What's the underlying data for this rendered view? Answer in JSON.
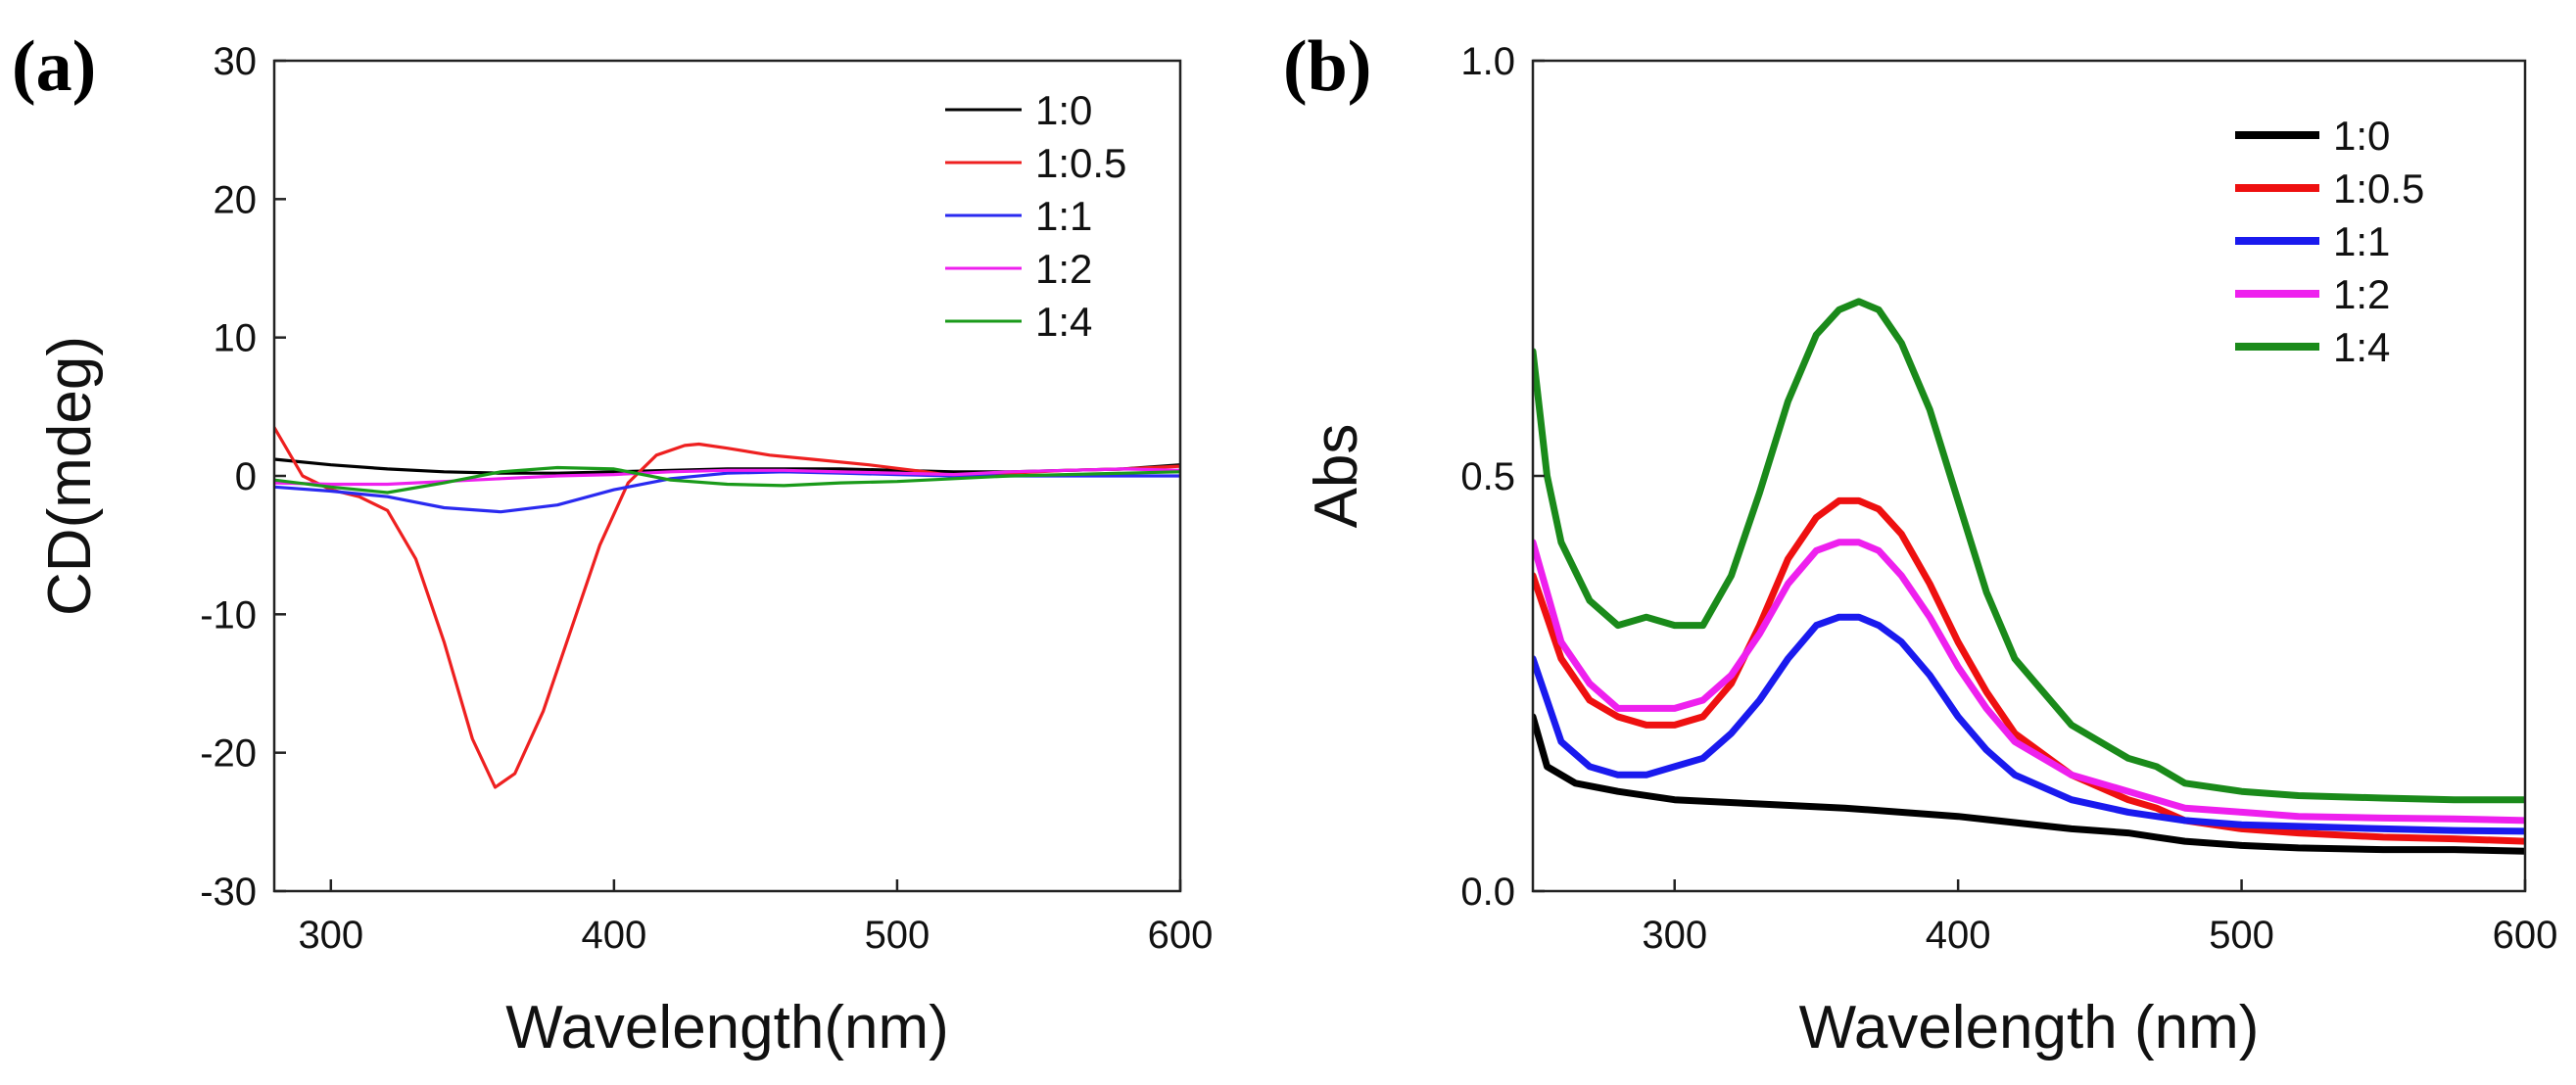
{
  "panels": {
    "a": {
      "label": "(a)"
    },
    "b": {
      "label": "(b)"
    }
  },
  "chart_data": [
    {
      "type": "line",
      "title": "",
      "xlabel": "Wavelength(nm)",
      "ylabel": "CD(mdeg)",
      "xlim": [
        280,
        600
      ],
      "ylim": [
        -30,
        30
      ],
      "xticks": [
        300,
        400,
        500,
        600
      ],
      "yticks": [
        -30,
        -20,
        -10,
        0,
        10,
        20,
        30
      ],
      "legend_position": "top-right",
      "grid": false,
      "series": [
        {
          "name": "1:0",
          "color": "#000000",
          "x": [
            280,
            300,
            320,
            340,
            360,
            380,
            400,
            420,
            440,
            460,
            480,
            500,
            520,
            540,
            560,
            580,
            600
          ],
          "y": [
            1.2,
            0.8,
            0.5,
            0.3,
            0.2,
            0.2,
            0.3,
            0.4,
            0.5,
            0.5,
            0.5,
            0.4,
            0.3,
            0.3,
            0.4,
            0.5,
            0.8
          ]
        },
        {
          "name": "1:0.5",
          "color": "#ee2020",
          "x": [
            280,
            290,
            300,
            310,
            320,
            330,
            340,
            350,
            358,
            365,
            375,
            385,
            395,
            405,
            415,
            425,
            430,
            440,
            455,
            470,
            490,
            510,
            520,
            540,
            560,
            580,
            600
          ],
          "y": [
            3.5,
            0.0,
            -1.0,
            -1.5,
            -2.5,
            -6.0,
            -12.0,
            -19.0,
            -22.5,
            -21.5,
            -17.0,
            -11.0,
            -5.0,
            -0.5,
            1.5,
            2.2,
            2.3,
            2.0,
            1.5,
            1.2,
            0.8,
            0.3,
            0.0,
            0.2,
            0.4,
            0.5,
            0.7
          ]
        },
        {
          "name": "1:1",
          "color": "#2a2af0",
          "x": [
            280,
            300,
            320,
            340,
            360,
            380,
            400,
            420,
            440,
            460,
            480,
            500,
            520,
            540,
            560,
            580,
            600
          ],
          "y": [
            -0.8,
            -1.1,
            -1.5,
            -2.3,
            -2.6,
            -2.1,
            -1.0,
            -0.2,
            0.2,
            0.3,
            0.2,
            0.1,
            0.0,
            0.0,
            0.0,
            0.0,
            0.0
          ]
        },
        {
          "name": "1:2",
          "color": "#ee20ee",
          "x": [
            280,
            300,
            320,
            340,
            360,
            380,
            400,
            420,
            440,
            460,
            480,
            500,
            520,
            540,
            560,
            580,
            600
          ],
          "y": [
            -0.5,
            -0.6,
            -0.6,
            -0.4,
            -0.2,
            0.0,
            0.1,
            0.3,
            0.4,
            0.4,
            0.3,
            0.2,
            0.1,
            0.3,
            0.4,
            0.5,
            0.4
          ]
        },
        {
          "name": "1:4",
          "color": "#1a9a1a",
          "x": [
            280,
            300,
            320,
            340,
            360,
            380,
            400,
            420,
            440,
            460,
            480,
            500,
            520,
            540,
            560,
            580,
            600
          ],
          "y": [
            -0.3,
            -0.8,
            -1.2,
            -0.5,
            0.3,
            0.6,
            0.5,
            -0.3,
            -0.6,
            -0.7,
            -0.5,
            -0.4,
            -0.2,
            0.0,
            0.1,
            0.2,
            0.3
          ]
        }
      ]
    },
    {
      "type": "line",
      "title": "",
      "xlabel": "Wavelength (nm)",
      "ylabel": "Abs",
      "xlim": [
        250,
        600
      ],
      "ylim": [
        0.0,
        1.0
      ],
      "xticks": [
        300,
        400,
        500,
        600
      ],
      "yticks": [
        0.0,
        0.5,
        1.0
      ],
      "tick_labels_y": [
        "0.0",
        "0.5",
        "1.0"
      ],
      "legend_position": "top-right",
      "grid": false,
      "series": [
        {
          "name": "1:0",
          "color": "#000000",
          "x": [
            250,
            255,
            265,
            280,
            300,
            330,
            360,
            400,
            440,
            460,
            470,
            480,
            500,
            520,
            550,
            575,
            600
          ],
          "y": [
            0.21,
            0.15,
            0.13,
            0.12,
            0.11,
            0.105,
            0.1,
            0.09,
            0.075,
            0.07,
            0.065,
            0.06,
            0.055,
            0.052,
            0.05,
            0.05,
            0.048
          ]
        },
        {
          "name": "1:0.5",
          "color": "#ee1010",
          "x": [
            250,
            260,
            270,
            280,
            290,
            300,
            310,
            320,
            330,
            340,
            350,
            358,
            365,
            372,
            380,
            390,
            400,
            410,
            420,
            440,
            460,
            470,
            480,
            500,
            520,
            550,
            575,
            600
          ],
          "y": [
            0.38,
            0.28,
            0.23,
            0.21,
            0.2,
            0.2,
            0.21,
            0.25,
            0.32,
            0.4,
            0.45,
            0.47,
            0.47,
            0.46,
            0.43,
            0.37,
            0.3,
            0.24,
            0.19,
            0.14,
            0.11,
            0.1,
            0.085,
            0.075,
            0.07,
            0.065,
            0.063,
            0.06
          ]
        },
        {
          "name": "1:1",
          "color": "#1a1aee",
          "x": [
            250,
            260,
            270,
            280,
            290,
            300,
            310,
            320,
            330,
            340,
            350,
            358,
            365,
            372,
            380,
            390,
            400,
            410,
            420,
            440,
            460,
            470,
            480,
            500,
            520,
            550,
            575,
            600
          ],
          "y": [
            0.28,
            0.18,
            0.15,
            0.14,
            0.14,
            0.15,
            0.16,
            0.19,
            0.23,
            0.28,
            0.32,
            0.33,
            0.33,
            0.32,
            0.3,
            0.26,
            0.21,
            0.17,
            0.14,
            0.11,
            0.095,
            0.09,
            0.085,
            0.08,
            0.078,
            0.075,
            0.073,
            0.072
          ]
        },
        {
          "name": "1:2",
          "color": "#ee20ee",
          "x": [
            250,
            260,
            270,
            280,
            290,
            300,
            310,
            320,
            330,
            340,
            350,
            358,
            365,
            372,
            380,
            390,
            400,
            410,
            420,
            440,
            460,
            470,
            480,
            500,
            520,
            550,
            575,
            600
          ],
          "y": [
            0.42,
            0.3,
            0.25,
            0.22,
            0.22,
            0.22,
            0.23,
            0.26,
            0.31,
            0.37,
            0.41,
            0.42,
            0.42,
            0.41,
            0.38,
            0.33,
            0.27,
            0.22,
            0.18,
            0.14,
            0.12,
            0.11,
            0.1,
            0.095,
            0.09,
            0.088,
            0.087,
            0.085
          ]
        },
        {
          "name": "1:4",
          "color": "#1a8a1a",
          "x": [
            250,
            255,
            260,
            270,
            280,
            290,
            300,
            310,
            320,
            330,
            340,
            350,
            358,
            365,
            372,
            380,
            390,
            400,
            410,
            420,
            440,
            460,
            470,
            480,
            500,
            520,
            550,
            575,
            600
          ],
          "y": [
            0.65,
            0.5,
            0.42,
            0.35,
            0.32,
            0.33,
            0.32,
            0.32,
            0.38,
            0.48,
            0.59,
            0.67,
            0.7,
            0.71,
            0.7,
            0.66,
            0.58,
            0.47,
            0.36,
            0.28,
            0.2,
            0.16,
            0.15,
            0.13,
            0.12,
            0.115,
            0.112,
            0.11,
            0.11
          ]
        }
      ]
    }
  ]
}
